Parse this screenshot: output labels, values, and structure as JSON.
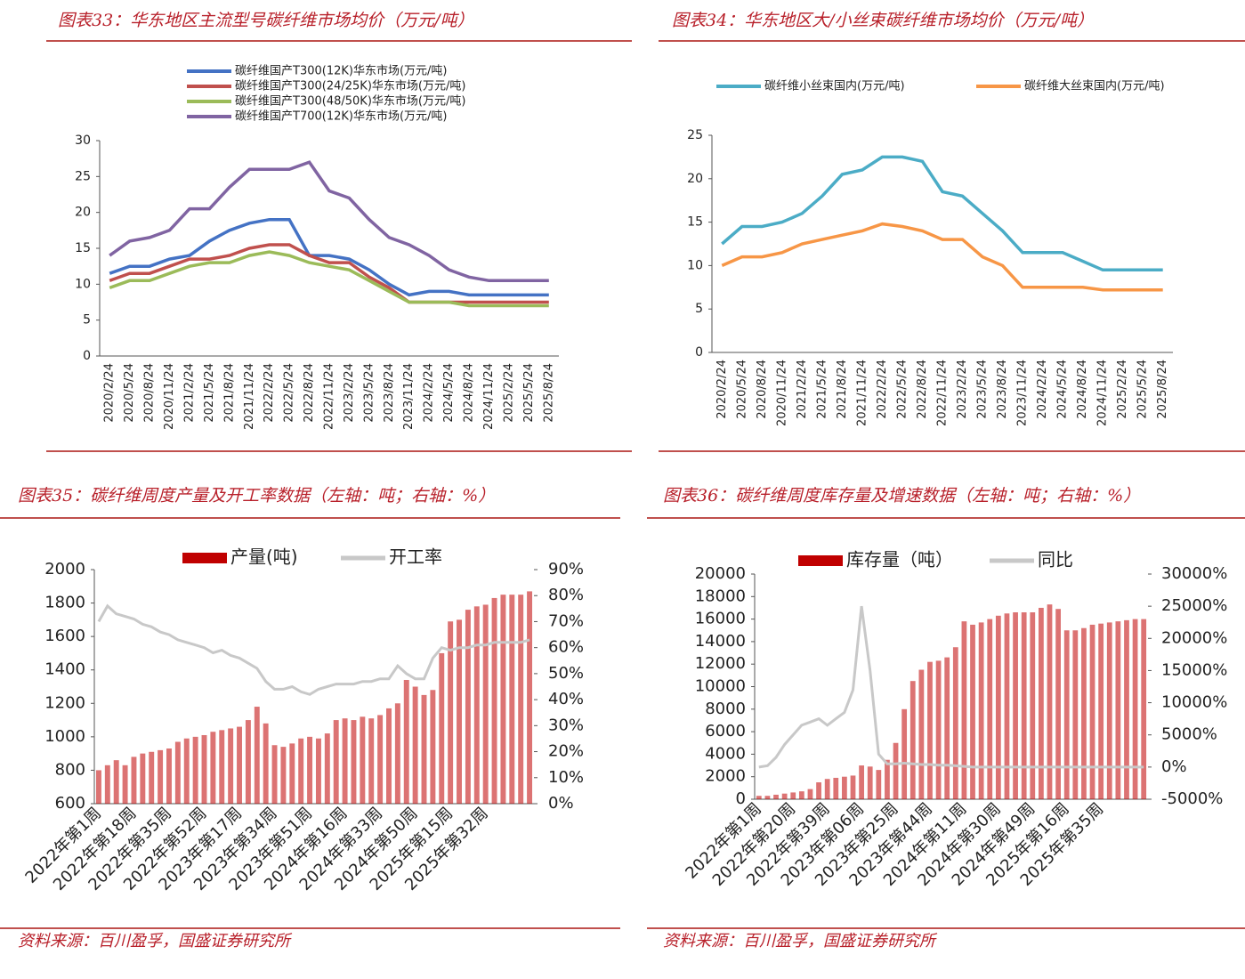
{
  "chart_data": [
    {
      "type": "line",
      "title": "图表33：华东地区主流型号碳纤维市场均价（万元/吨）",
      "categories": [
        "2020/2/24",
        "2020/5/24",
        "2020/8/24",
        "2020/11/24",
        "2021/2/24",
        "2021/5/24",
        "2021/8/24",
        "2021/11/24",
        "2022/2/24",
        "2022/5/24",
        "2022/8/24",
        "2022/11/24",
        "2023/2/24",
        "2023/5/24",
        "2023/8/24",
        "2023/11/24",
        "2024/2/24",
        "2024/5/24",
        "2024/8/24",
        "2024/11/24",
        "2025/2/24",
        "2025/5/24",
        "2025/8/24"
      ],
      "series": [
        {
          "name": "碳纤维国产T300(12K)华东市场(万元/吨)",
          "color": "#4472c4",
          "values": [
            11.5,
            12.5,
            12.5,
            13.5,
            14,
            16,
            17.5,
            18.5,
            19,
            19,
            14,
            14,
            13.5,
            12,
            10,
            8.5,
            9,
            9,
            8.5,
            8.5,
            8.5,
            8.5,
            8.5
          ]
        },
        {
          "name": "碳纤维国产T300(24/25K)华东市场(万元/吨)",
          "color": "#c0504d",
          "values": [
            10.5,
            11.5,
            11.5,
            12.5,
            13.5,
            13.5,
            14,
            15,
            15.5,
            15.5,
            14,
            13,
            13,
            11,
            9.5,
            7.5,
            7.5,
            7.5,
            7.5,
            7.5,
            7.5,
            7.5,
            7.5
          ]
        },
        {
          "name": "碳纤维国产T300(48/50K)华东市场(万元/吨)",
          "color": "#9bbb59",
          "values": [
            9.5,
            10.5,
            10.5,
            11.5,
            12.5,
            13,
            13,
            14,
            14.5,
            14,
            13,
            12.5,
            12,
            10.5,
            9,
            7.5,
            7.5,
            7.5,
            7,
            7,
            7,
            7,
            7
          ]
        },
        {
          "name": "碳纤维国产T700(12K)华东市场(万元/吨)",
          "color": "#8064a2",
          "values": [
            14,
            16,
            16.5,
            17.5,
            20.5,
            20.5,
            23.5,
            26,
            26,
            26,
            27,
            23,
            22,
            19,
            16.5,
            15.5,
            14,
            12,
            11,
            10.5,
            10.5,
            10.5,
            10.5
          ]
        }
      ],
      "ylim": [
        0,
        30
      ],
      "yticks": [
        0,
        5,
        10,
        15,
        20,
        25,
        30
      ]
    },
    {
      "type": "line",
      "title": "图表34：华东地区大/小丝束碳纤维市场均价（万元/吨）",
      "categories": [
        "2020/2/24",
        "2020/5/24",
        "2020/8/24",
        "2020/11/24",
        "2021/2/24",
        "2021/5/24",
        "2021/8/24",
        "2021/11/24",
        "2022/2/24",
        "2022/5/24",
        "2022/8/24",
        "2022/11/24",
        "2023/2/24",
        "2023/5/24",
        "2023/8/24",
        "2023/11/24",
        "2024/2/24",
        "2024/5/24",
        "2024/8/24",
        "2024/11/24",
        "2025/2/24",
        "2025/5/24",
        "2025/8/24"
      ],
      "series": [
        {
          "name": "碳纤维小丝束国内(万元/吨)",
          "color": "#4bacc6",
          "values": [
            12.5,
            14.5,
            14.5,
            15,
            16,
            18,
            20.5,
            21,
            22.5,
            22.5,
            22,
            18.5,
            18,
            16,
            14,
            11.5,
            11.5,
            11.5,
            10.5,
            9.5,
            9.5,
            9.5,
            9.5
          ]
        },
        {
          "name": "碳纤维大丝束国内(万元/吨)",
          "color": "#f79646",
          "values": [
            10,
            11,
            11,
            11.5,
            12.5,
            13,
            13.5,
            14,
            14.8,
            14.5,
            14,
            13,
            13,
            11,
            10,
            7.5,
            7.5,
            7.5,
            7.5,
            7.2,
            7.2,
            7.2,
            7.2
          ]
        }
      ],
      "ylim": [
        0,
        25
      ],
      "yticks": [
        0,
        5,
        10,
        15,
        20,
        25
      ]
    },
    {
      "type": "bar",
      "title": "图表35：碳纤维周度产量及开工率数据（左轴：吨；右轴：%）",
      "categories": [
        "2022年第1周",
        null,
        null,
        null,
        "2022年第18周",
        null,
        null,
        null,
        "2022年第35周",
        null,
        null,
        null,
        "2022年第52周",
        null,
        null,
        null,
        "2023年第17周",
        null,
        null,
        null,
        "2023年第34周",
        null,
        null,
        null,
        "2023年第51周",
        null,
        null,
        null,
        "2024年第16周",
        null,
        null,
        null,
        "2024年第33周",
        null,
        null,
        null,
        "2024年第50周",
        null,
        null,
        null,
        "2025年第15周",
        null,
        null,
        null,
        "2025年第32周",
        null,
        null,
        null,
        null,
        null
      ],
      "series": [
        {
          "name": "产量(吨)",
          "color": "#c00000",
          "values": [
            800,
            830,
            860,
            830,
            880,
            900,
            910,
            920,
            930,
            970,
            990,
            1000,
            1010,
            1030,
            1040,
            1050,
            1060,
            1100,
            1180,
            1080,
            950,
            940,
            960,
            990,
            1000,
            990,
            1020,
            1100,
            1110,
            1100,
            1120,
            1110,
            1130,
            1170,
            1200,
            1340,
            1300,
            1250,
            1280,
            1500,
            1690,
            1700,
            1760,
            1780,
            1790,
            1830,
            1850,
            1850,
            1850,
            1870
          ]
        },
        {
          "name": "开工率",
          "color": "#c8c8c8",
          "type": "line",
          "axis": "y2",
          "values": [
            70,
            76,
            73,
            72,
            71,
            69,
            68,
            66,
            65,
            63,
            62,
            61,
            60,
            58,
            59,
            57,
            56,
            54,
            52,
            47,
            44,
            44,
            45,
            43,
            42,
            44,
            45,
            46,
            46,
            46,
            47,
            47,
            48,
            48,
            53,
            50,
            48,
            48,
            56,
            60,
            59,
            60,
            60,
            61,
            61,
            62,
            62,
            62,
            62,
            63
          ]
        }
      ],
      "ylim": [
        600,
        2000
      ],
      "yticks": [
        600,
        800,
        1000,
        1200,
        1400,
        1600,
        1800,
        2000
      ],
      "y2lim": [
        0,
        90
      ],
      "y2ticks": [
        {
          "value": 0,
          "label": "0%"
        },
        {
          "value": 10,
          "label": "10%"
        },
        {
          "value": 20,
          "label": "20%"
        },
        {
          "value": 30,
          "label": "30%"
        },
        {
          "value": 40,
          "label": "40%"
        },
        {
          "value": 50,
          "label": "50%"
        },
        {
          "value": 60,
          "label": "60%"
        },
        {
          "value": 70,
          "label": "70%"
        },
        {
          "value": 80,
          "label": "80%"
        },
        {
          "value": 90,
          "label": "90%"
        }
      ],
      "source": "资料来源：百川盈孚，国盛证券研究所"
    },
    {
      "type": "bar",
      "title": "图表36：碳纤维周度库存量及增速数据（左轴：吨；右轴：%）",
      "categories": [
        "2022年第1周",
        null,
        null,
        null,
        "2022年第20周",
        null,
        null,
        null,
        "2022年第39周",
        null,
        null,
        null,
        "2023年第06周",
        null,
        null,
        null,
        "2023年第25周",
        null,
        null,
        null,
        "2023年第44周",
        null,
        null,
        null,
        "2024年第11周",
        null,
        null,
        null,
        "2024年第30周",
        null,
        null,
        null,
        "2024年第49周",
        null,
        null,
        null,
        "2025年第16周",
        null,
        null,
        null,
        "2025年第35周",
        null,
        null,
        null,
        null,
        null
      ],
      "series": [
        {
          "name": "库存量（吨）",
          "color": "#c00000",
          "values": [
            300,
            300,
            400,
            500,
            600,
            700,
            900,
            1500,
            1800,
            1900,
            2000,
            2100,
            3000,
            2900,
            2600,
            3500,
            5000,
            8000,
            10500,
            11500,
            12200,
            12300,
            12600,
            13500,
            15800,
            15500,
            15700,
            16000,
            16300,
            16500,
            16600,
            16600,
            16600,
            17000,
            17300,
            16900,
            15000,
            15000,
            15200,
            15500,
            15600,
            15700,
            15800,
            15900,
            16000,
            16000
          ]
        },
        {
          "name": "同比",
          "color": "#c8c8c8",
          "type": "line",
          "axis": "y2",
          "values": [
            0,
            200,
            1500,
            3500,
            5000,
            6500,
            7000,
            7500,
            6500,
            7500,
            8500,
            12000,
            25000,
            15000,
            2000,
            500,
            500,
            600,
            500,
            400,
            400,
            300,
            300,
            200,
            100,
            0,
            0,
            0,
            0,
            0,
            0,
            0,
            0,
            0,
            0,
            0,
            0,
            0,
            0,
            0,
            0,
            0,
            0,
            0,
            0,
            0
          ]
        }
      ],
      "ylim": [
        0,
        20000
      ],
      "yticks": [
        0,
        2000,
        4000,
        6000,
        8000,
        10000,
        12000,
        14000,
        16000,
        18000,
        20000
      ],
      "y2lim": [
        -5000,
        30000
      ],
      "y2ticks": [
        {
          "value": -5000,
          "label": "-5000%"
        },
        {
          "value": 0,
          "label": "0%"
        },
        {
          "value": 5000,
          "label": "5000%"
        },
        {
          "value": 10000,
          "label": "10000%"
        },
        {
          "value": 15000,
          "label": "15000%"
        },
        {
          "value": 20000,
          "label": "20000%"
        },
        {
          "value": 25000,
          "label": "25000%"
        },
        {
          "value": 30000,
          "label": "30000%"
        }
      ],
      "source": "资料来源：百川盈孚，国盛证券研究所"
    }
  ]
}
